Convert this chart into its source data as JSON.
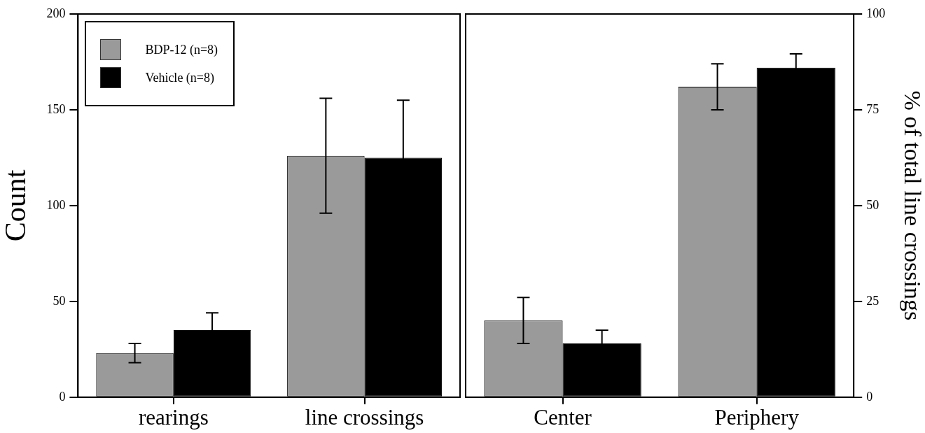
{
  "chart_data": [
    {
      "type": "bar",
      "ylabel": "Count",
      "categories": [
        "rearings",
        "line crossings"
      ],
      "ylim": [
        0,
        200
      ],
      "yticks": [
        0,
        50,
        100,
        150,
        200
      ],
      "grid": false,
      "legend": "top left",
      "series": [
        {
          "name": "BDP-12 (n=8)",
          "color": "#9a9a9a",
          "values": [
            23,
            126
          ],
          "errors": [
            5,
            30
          ]
        },
        {
          "name": "Vehicle (n=8)",
          "color": "#000000",
          "values": [
            35,
            125
          ],
          "errors": [
            9,
            30
          ]
        }
      ]
    },
    {
      "type": "bar",
      "y2label": "% of total line crossings",
      "categories": [
        "Center",
        "Periphery"
      ],
      "y2lim": [
        0,
        100
      ],
      "y2ticks": [
        0,
        25,
        50,
        75,
        100
      ],
      "grid": false,
      "legend": false,
      "series": [
        {
          "color": "#9a9a9a",
          "values": [
            20,
            81
          ],
          "errors": [
            6,
            6
          ],
          "axis": "y2"
        },
        {
          "color": "#000000",
          "values": [
            14,
            86
          ],
          "errors": [
            3.5,
            3.6
          ],
          "axis": "y2"
        }
      ]
    }
  ]
}
